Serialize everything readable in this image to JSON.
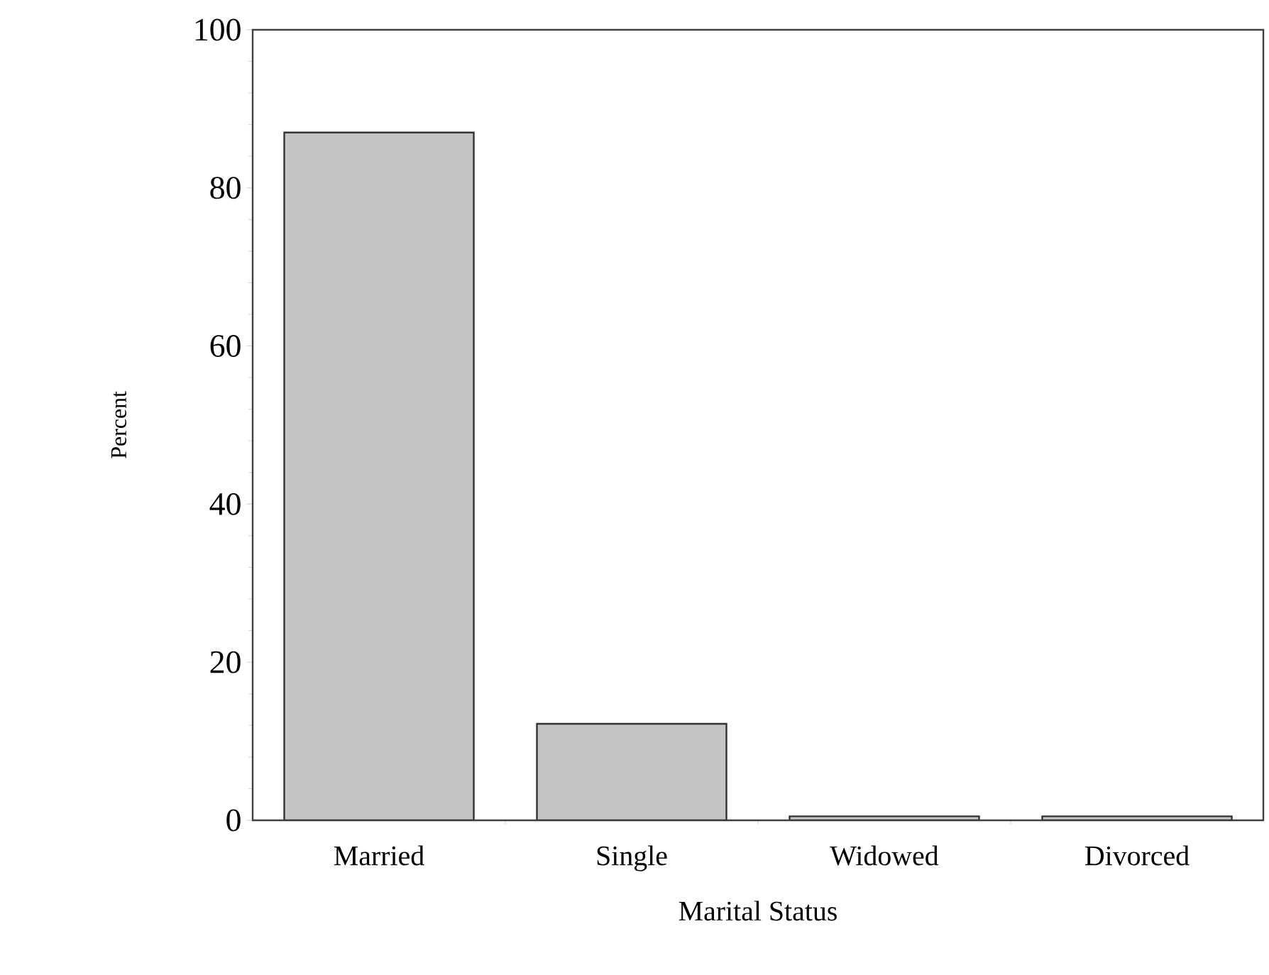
{
  "chart_data": {
    "type": "bar",
    "xlabel": "Marital Status",
    "ylabel": "Percent",
    "categories": [
      "Married",
      "Single",
      "Widowed",
      "Divorced"
    ],
    "values": [
      87,
      12.2,
      0.5,
      0.5
    ],
    "color": "#c4c4c4",
    "ylim": [
      0,
      100
    ],
    "yticks": [
      0,
      20,
      40,
      60,
      80,
      100
    ],
    "grid": false
  }
}
